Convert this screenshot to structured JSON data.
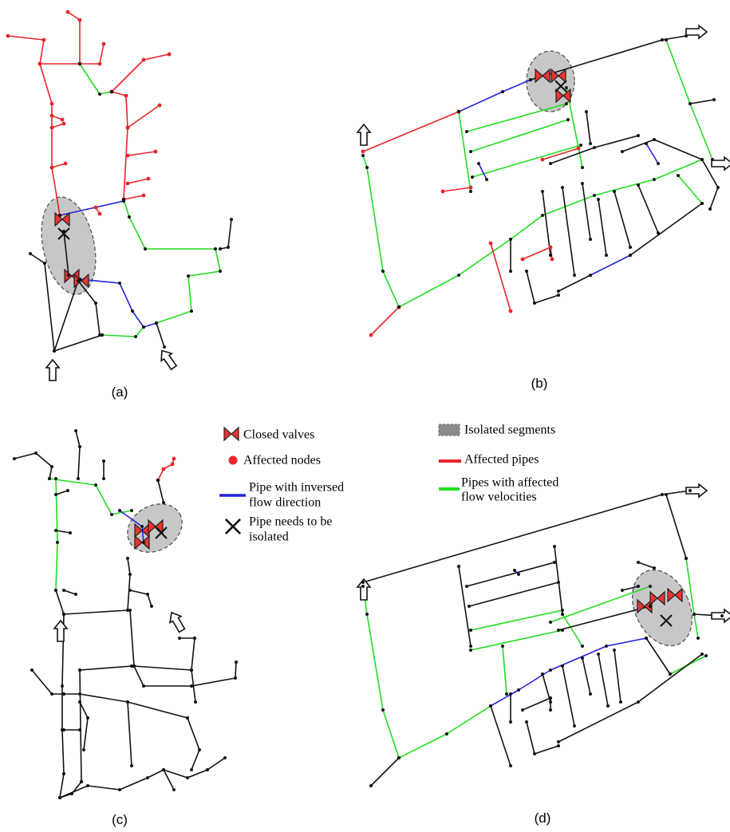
{
  "panels": [
    {
      "label": "(a)"
    },
    {
      "label": "(b)"
    },
    {
      "label": "(c)"
    },
    {
      "label": "(d)"
    }
  ],
  "legend": {
    "items": [
      {
        "lines": [
          "Closed valves"
        ]
      },
      {
        "lines": [
          "Affected nodes"
        ]
      },
      {
        "lines": [
          "Pipe with inversed",
          "flow direction"
        ]
      },
      {
        "lines": [
          "Pipe needs to be",
          "isolated"
        ]
      },
      {
        "lines": [
          "Isolated segments"
        ]
      },
      {
        "lines": [
          "Affected pipes"
        ]
      },
      {
        "lines": [
          "Pipes with affected",
          "flow velocities"
        ]
      }
    ]
  }
}
